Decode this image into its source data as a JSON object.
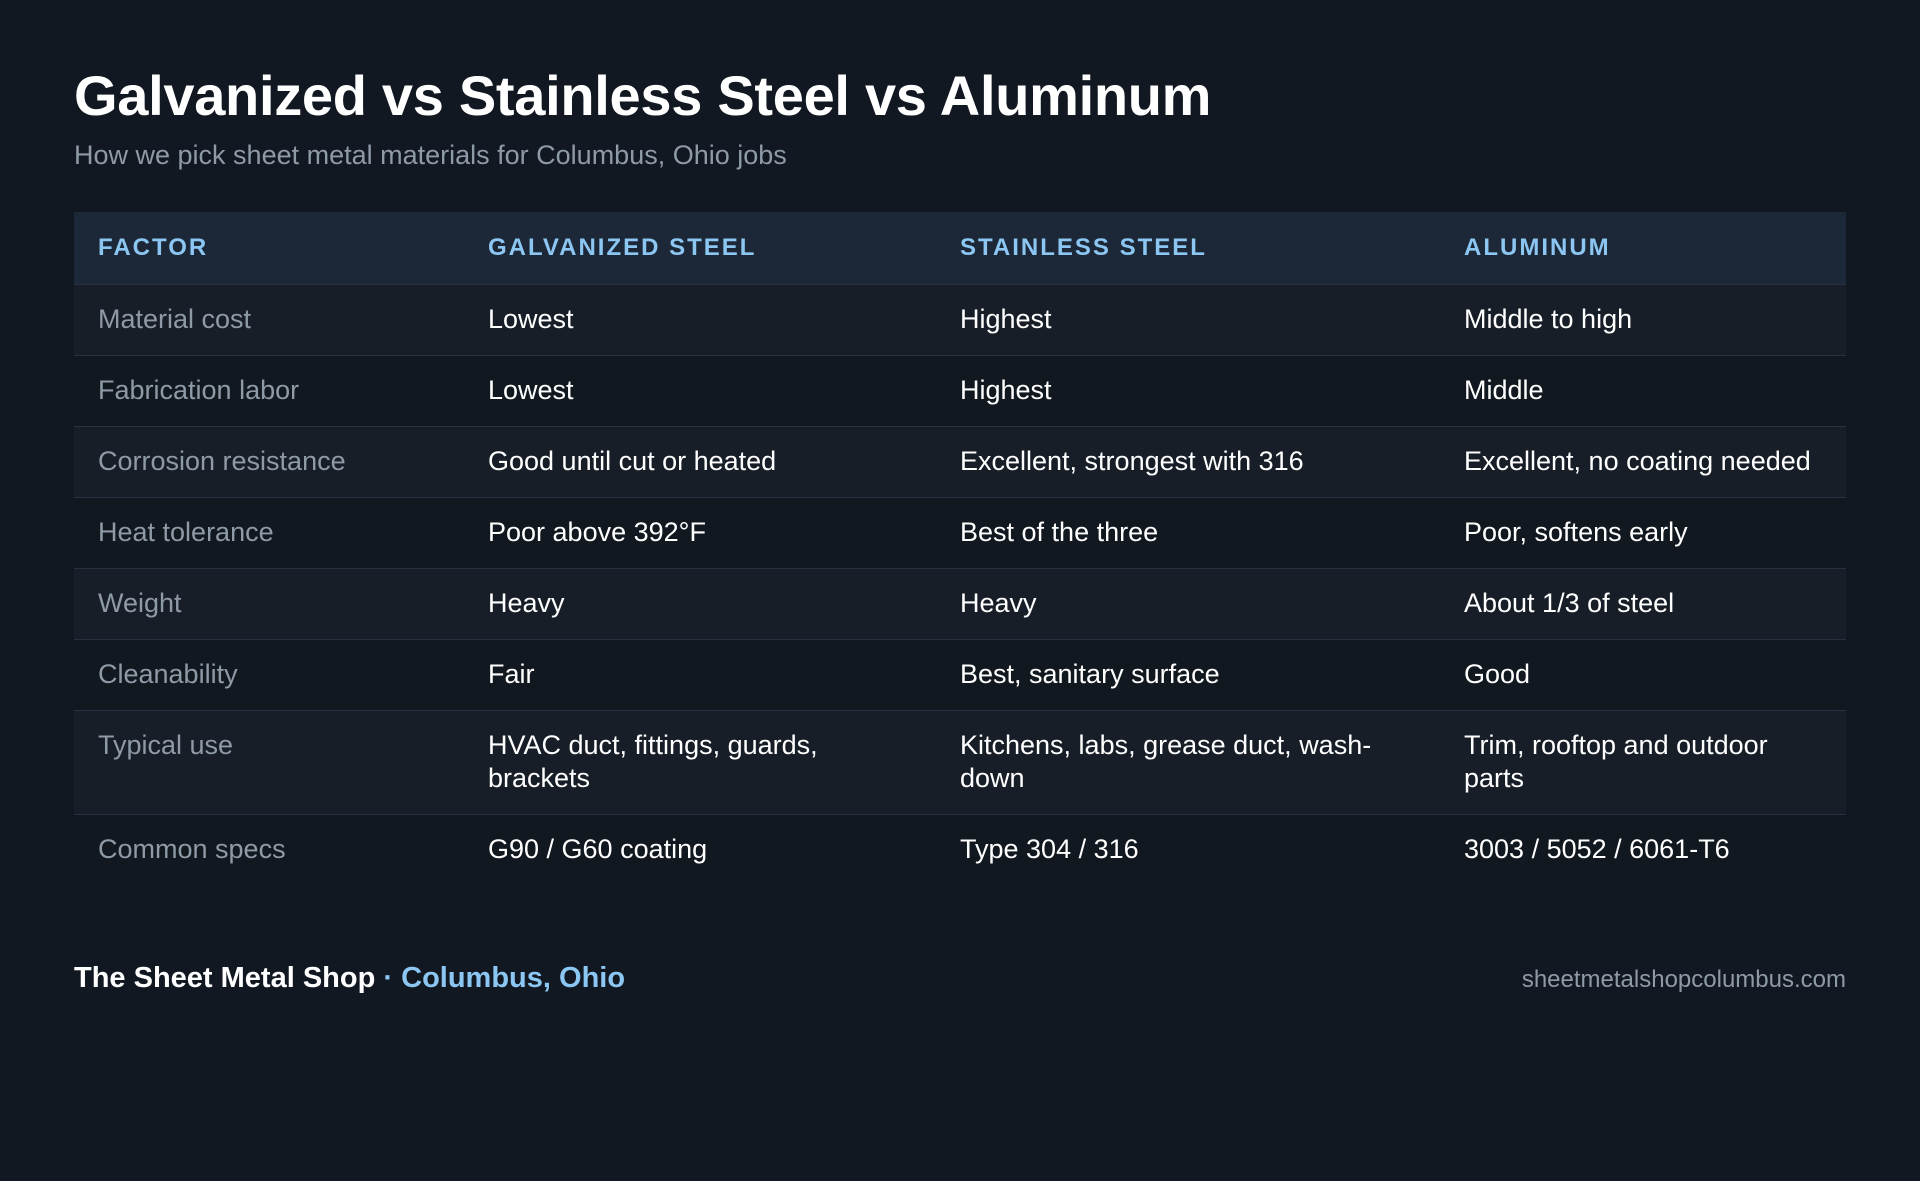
{
  "header": {
    "title": "Galvanized vs Stainless Steel vs Aluminum",
    "subtitle": "How we pick sheet metal materials for Columbus, Ohio jobs"
  },
  "table": {
    "columns": [
      "FACTOR",
      "GALVANIZED STEEL",
      "STAINLESS STEEL",
      "ALUMINUM"
    ],
    "rows": [
      [
        "Material cost",
        "Lowest",
        "Highest",
        "Middle to high"
      ],
      [
        "Fabrication labor",
        "Lowest",
        "Highest",
        "Middle"
      ],
      [
        "Corrosion resistance",
        "Good until cut or heated",
        "Excellent, strongest with 316",
        "Excellent, no coating needed"
      ],
      [
        "Heat tolerance",
        "Poor above 392°F",
        "Best of the three",
        "Poor, softens early"
      ],
      [
        "Weight",
        "Heavy",
        "Heavy",
        "About 1/3 of steel"
      ],
      [
        "Cleanability",
        "Fair",
        "Best, sanitary surface",
        "Good"
      ],
      [
        "Typical use",
        "HVAC duct, fittings, guards, brackets",
        "Kitchens, labs, grease duct, wash-down",
        "Trim, rooftop and outdoor parts"
      ],
      [
        "Common specs",
        "G90 / G60 coating",
        "Type 304 / 316",
        "3003 / 5052 / 6061-T6"
      ]
    ]
  },
  "footer": {
    "brand": "The Sheet Metal Shop",
    "separator": "·",
    "city": "Columbus, Ohio",
    "website": "sheetmetalshopcolumbus.com"
  },
  "colors": {
    "background": "#111821",
    "header_row": "#1c2837",
    "accent": "#8cc6f2",
    "muted_text": "#8f9aa7"
  }
}
